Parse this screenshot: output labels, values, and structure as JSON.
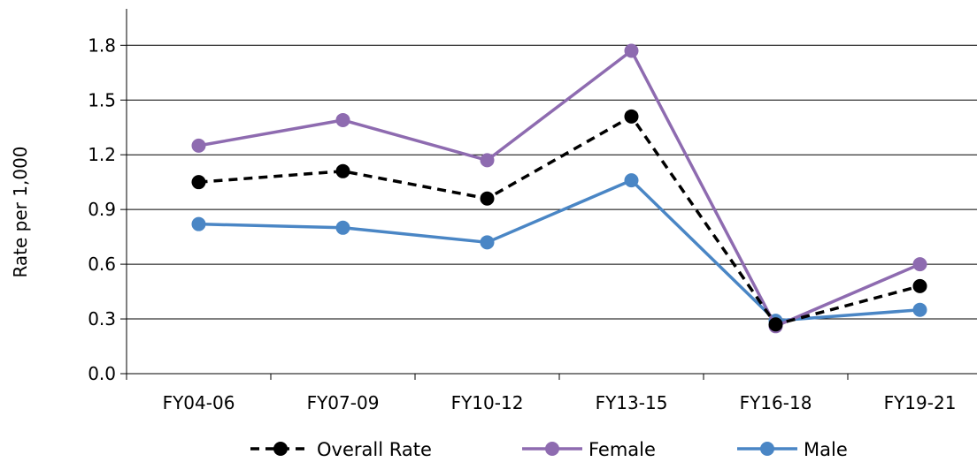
{
  "chart_data": {
    "type": "line",
    "title": "",
    "xlabel": "",
    "ylabel": "Rate per 1,000",
    "categories": [
      "FY04-06",
      "FY07-09",
      "FY10-12",
      "FY13-15",
      "FY16-18",
      "FY19-21"
    ],
    "y_ticks": [
      "0.0",
      "0.3",
      "0.6",
      "0.9",
      "1.2",
      "1.5",
      "1.8"
    ],
    "ylim": [
      0,
      2.0
    ],
    "grid": true,
    "legend_position": "bottom",
    "series": [
      {
        "name": "Overall Rate",
        "color": "#000000",
        "dashed": true,
        "values": [
          1.05,
          1.11,
          0.96,
          1.41,
          0.27,
          0.48
        ]
      },
      {
        "name": "Female",
        "color": "#8e6bb0",
        "dashed": false,
        "values": [
          1.25,
          1.39,
          1.17,
          1.77,
          0.26,
          0.6
        ]
      },
      {
        "name": "Male",
        "color": "#4a86c5",
        "dashed": false,
        "values": [
          0.82,
          0.8,
          0.72,
          1.06,
          0.29,
          0.35
        ]
      }
    ]
  }
}
